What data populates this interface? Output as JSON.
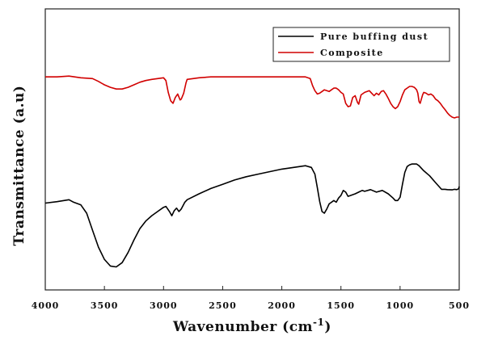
{
  "chart_data": {
    "type": "line",
    "title": "",
    "xlabel": "Wavenumber (cm",
    "xlabel_sup": "-1",
    "xlabel_close": ")",
    "ylabel": "Transmittance (a.u)",
    "xlim": [
      4000,
      500
    ],
    "x_reversed": true,
    "ylim": [
      0,
      1
    ],
    "y_ticks_labeled": false,
    "grid": false,
    "legend_position": "top-right",
    "x_ticks": [
      4000,
      3500,
      3000,
      2500,
      2000,
      1500,
      1000,
      500
    ],
    "x_tick_labels": [
      "4000",
      "3500",
      "3000",
      "2500",
      "2000",
      "1500",
      "1000",
      "500"
    ],
    "series": [
      {
        "name": "Pure buffing dust",
        "color": "#000000",
        "points": [
          [
            4000,
            0.309
          ],
          [
            3900,
            0.314
          ],
          [
            3800,
            0.321
          ],
          [
            3760,
            0.312
          ],
          [
            3700,
            0.303
          ],
          [
            3650,
            0.273
          ],
          [
            3600,
            0.212
          ],
          [
            3550,
            0.152
          ],
          [
            3500,
            0.109
          ],
          [
            3450,
            0.085
          ],
          [
            3400,
            0.082
          ],
          [
            3350,
            0.097
          ],
          [
            3300,
            0.133
          ],
          [
            3250,
            0.178
          ],
          [
            3200,
            0.218
          ],
          [
            3150,
            0.245
          ],
          [
            3100,
            0.264
          ],
          [
            3050,
            0.279
          ],
          [
            3000,
            0.294
          ],
          [
            2980,
            0.297
          ],
          [
            2950,
            0.279
          ],
          [
            2930,
            0.264
          ],
          [
            2910,
            0.282
          ],
          [
            2890,
            0.291
          ],
          [
            2870,
            0.279
          ],
          [
            2850,
            0.288
          ],
          [
            2820,
            0.312
          ],
          [
            2800,
            0.321
          ],
          [
            2700,
            0.342
          ],
          [
            2600,
            0.361
          ],
          [
            2500,
            0.376
          ],
          [
            2400,
            0.391
          ],
          [
            2300,
            0.403
          ],
          [
            2200,
            0.412
          ],
          [
            2100,
            0.421
          ],
          [
            2000,
            0.43
          ],
          [
            1900,
            0.436
          ],
          [
            1800,
            0.442
          ],
          [
            1750,
            0.436
          ],
          [
            1720,
            0.412
          ],
          [
            1700,
            0.364
          ],
          [
            1680,
            0.315
          ],
          [
            1660,
            0.279
          ],
          [
            1640,
            0.273
          ],
          [
            1620,
            0.288
          ],
          [
            1600,
            0.306
          ],
          [
            1560,
            0.318
          ],
          [
            1540,
            0.312
          ],
          [
            1520,
            0.327
          ],
          [
            1500,
            0.336
          ],
          [
            1480,
            0.354
          ],
          [
            1460,
            0.348
          ],
          [
            1440,
            0.333
          ],
          [
            1420,
            0.336
          ],
          [
            1380,
            0.342
          ],
          [
            1350,
            0.348
          ],
          [
            1320,
            0.354
          ],
          [
            1300,
            0.351
          ],
          [
            1250,
            0.357
          ],
          [
            1200,
            0.348
          ],
          [
            1150,
            0.354
          ],
          [
            1100,
            0.342
          ],
          [
            1060,
            0.327
          ],
          [
            1040,
            0.318
          ],
          [
            1020,
            0.318
          ],
          [
            1000,
            0.33
          ],
          [
            980,
            0.376
          ],
          [
            960,
            0.418
          ],
          [
            940,
            0.439
          ],
          [
            920,
            0.445
          ],
          [
            900,
            0.448
          ],
          [
            880,
            0.448
          ],
          [
            860,
            0.448
          ],
          [
            840,
            0.442
          ],
          [
            820,
            0.433
          ],
          [
            800,
            0.424
          ],
          [
            750,
            0.406
          ],
          [
            700,
            0.382
          ],
          [
            650,
            0.358
          ],
          [
            620,
            0.358
          ],
          [
            600,
            0.357
          ],
          [
            560,
            0.356
          ],
          [
            540,
            0.358
          ],
          [
            520,
            0.357
          ],
          [
            505,
            0.36
          ],
          [
            500,
            0.368
          ]
        ]
      },
      {
        "name": "Composite",
        "color": "#d10000",
        "points": [
          [
            4000,
            0.758
          ],
          [
            3900,
            0.758
          ],
          [
            3800,
            0.761
          ],
          [
            3700,
            0.755
          ],
          [
            3600,
            0.752
          ],
          [
            3550,
            0.742
          ],
          [
            3500,
            0.73
          ],
          [
            3450,
            0.721
          ],
          [
            3400,
            0.715
          ],
          [
            3350,
            0.715
          ],
          [
            3300,
            0.721
          ],
          [
            3250,
            0.73
          ],
          [
            3200,
            0.739
          ],
          [
            3150,
            0.745
          ],
          [
            3100,
            0.749
          ],
          [
            3050,
            0.752
          ],
          [
            3000,
            0.755
          ],
          [
            2980,
            0.745
          ],
          [
            2960,
            0.703
          ],
          [
            2940,
            0.673
          ],
          [
            2920,
            0.664
          ],
          [
            2900,
            0.685
          ],
          [
            2880,
            0.697
          ],
          [
            2860,
            0.676
          ],
          [
            2850,
            0.679
          ],
          [
            2830,
            0.7
          ],
          [
            2810,
            0.737
          ],
          [
            2800,
            0.749
          ],
          [
            2700,
            0.755
          ],
          [
            2600,
            0.758
          ],
          [
            2500,
            0.758
          ],
          [
            2400,
            0.758
          ],
          [
            2300,
            0.758
          ],
          [
            2200,
            0.758
          ],
          [
            2100,
            0.758
          ],
          [
            2000,
            0.758
          ],
          [
            1900,
            0.758
          ],
          [
            1800,
            0.758
          ],
          [
            1760,
            0.752
          ],
          [
            1740,
            0.727
          ],
          [
            1720,
            0.709
          ],
          [
            1700,
            0.697
          ],
          [
            1680,
            0.7
          ],
          [
            1660,
            0.706
          ],
          [
            1640,
            0.712
          ],
          [
            1620,
            0.709
          ],
          [
            1600,
            0.706
          ],
          [
            1580,
            0.712
          ],
          [
            1560,
            0.718
          ],
          [
            1540,
            0.718
          ],
          [
            1520,
            0.712
          ],
          [
            1500,
            0.703
          ],
          [
            1480,
            0.697
          ],
          [
            1460,
            0.664
          ],
          [
            1440,
            0.652
          ],
          [
            1420,
            0.655
          ],
          [
            1400,
            0.685
          ],
          [
            1380,
            0.691
          ],
          [
            1360,
            0.667
          ],
          [
            1350,
            0.661
          ],
          [
            1330,
            0.694
          ],
          [
            1300,
            0.703
          ],
          [
            1260,
            0.709
          ],
          [
            1240,
            0.7
          ],
          [
            1220,
            0.691
          ],
          [
            1200,
            0.7
          ],
          [
            1180,
            0.694
          ],
          [
            1160,
            0.706
          ],
          [
            1140,
            0.709
          ],
          [
            1120,
            0.697
          ],
          [
            1100,
            0.682
          ],
          [
            1080,
            0.664
          ],
          [
            1060,
            0.652
          ],
          [
            1040,
            0.645
          ],
          [
            1020,
            0.652
          ],
          [
            1000,
            0.67
          ],
          [
            980,
            0.694
          ],
          [
            960,
            0.712
          ],
          [
            940,
            0.718
          ],
          [
            920,
            0.724
          ],
          [
            900,
            0.724
          ],
          [
            880,
            0.721
          ],
          [
            860,
            0.712
          ],
          [
            850,
            0.7
          ],
          [
            840,
            0.67
          ],
          [
            830,
            0.664
          ],
          [
            820,
            0.679
          ],
          [
            810,
            0.694
          ],
          [
            800,
            0.703
          ],
          [
            780,
            0.7
          ],
          [
            760,
            0.694
          ],
          [
            740,
            0.697
          ],
          [
            720,
            0.691
          ],
          [
            700,
            0.679
          ],
          [
            680,
            0.673
          ],
          [
            660,
            0.664
          ],
          [
            640,
            0.652
          ],
          [
            620,
            0.642
          ],
          [
            600,
            0.63
          ],
          [
            580,
            0.621
          ],
          [
            560,
            0.615
          ],
          [
            540,
            0.612
          ],
          [
            520,
            0.615
          ],
          [
            500,
            0.615
          ]
        ]
      }
    ]
  }
}
